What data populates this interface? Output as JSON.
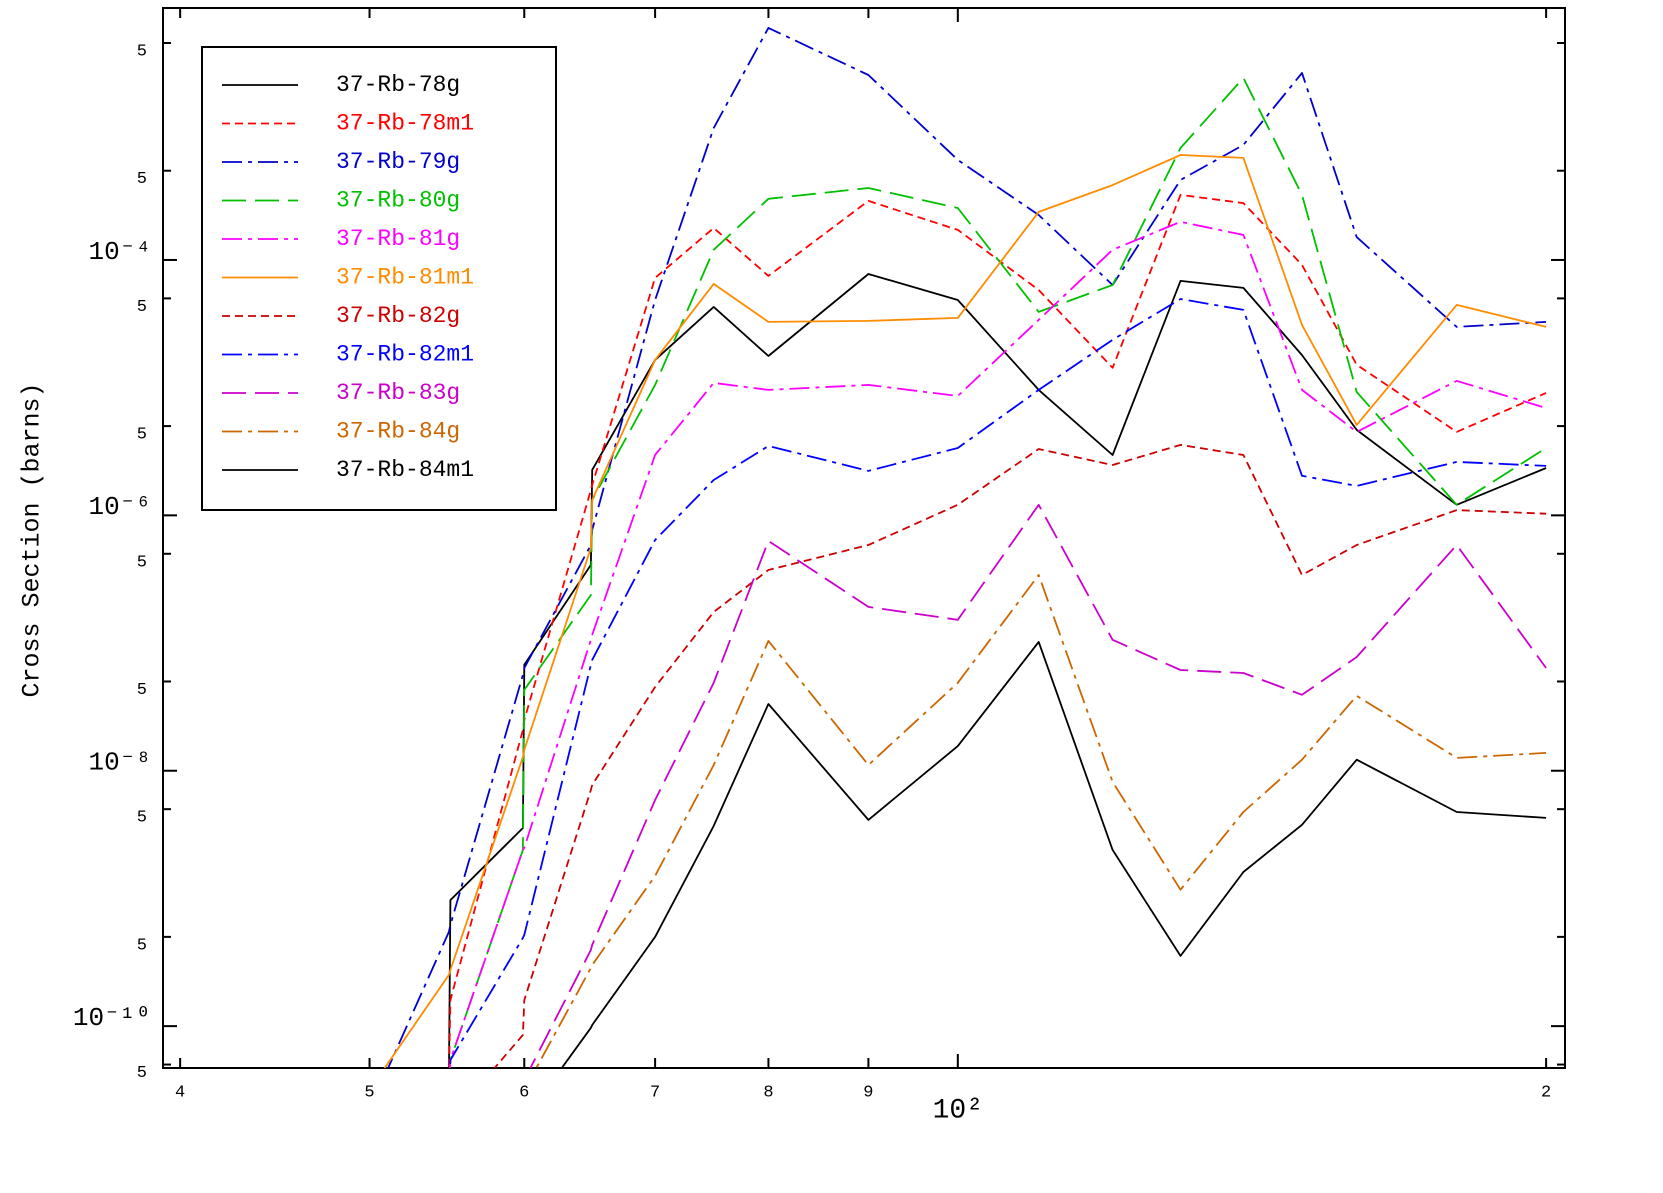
{
  "chart_data": {
    "type": "line",
    "ylabel": "Cross Section (barns)",
    "xscale": "log",
    "yscale": "log",
    "legend": "upper left",
    "xlim": [
      39.2,
      204.5
    ],
    "ylim": [
      4.7e-11,
      0.0094
    ],
    "xticks": [
      {
        "value": 40,
        "label": "4"
      },
      {
        "value": 50,
        "label": "5"
      },
      {
        "value": 60,
        "label": "6"
      },
      {
        "value": 70,
        "label": "7"
      },
      {
        "value": 80,
        "label": "8"
      },
      {
        "value": 90,
        "label": "9"
      },
      {
        "value": 100,
        "label": "10²"
      },
      {
        "value": 200,
        "label": "2"
      }
    ],
    "yticks": [
      {
        "value": 0.005,
        "label": "5"
      },
      {
        "value": 0.0005,
        "label": "5"
      },
      {
        "value": 0.0001,
        "label": "10⁻⁴"
      },
      {
        "value": 5e-05,
        "label": "5"
      },
      {
        "value": 5e-06,
        "label": "5"
      },
      {
        "value": 1e-06,
        "label": "10⁻⁶"
      },
      {
        "value": 5e-07,
        "label": "5"
      },
      {
        "value": 5e-08,
        "label": "5"
      },
      {
        "value": 1e-08,
        "label": "10⁻⁸"
      },
      {
        "value": 5e-09,
        "label": "5"
      },
      {
        "value": 5e-10,
        "label": "5"
      },
      {
        "value": 1e-10,
        "label": "10⁻¹⁰"
      },
      {
        "value": 5e-11,
        "label": "5"
      }
    ],
    "x": [
      50,
      54.9,
      55,
      59.9,
      60,
      64.9,
      65,
      70,
      75,
      80,
      90,
      100,
      110,
      120,
      130,
      140,
      150,
      160,
      180,
      200
    ],
    "series": [
      {
        "name": "37-Rb-78g",
        "color": "#000000",
        "dash": "solid",
        "values": [
          null,
          3.79e-11,
          9.7e-10,
          3.56e-09,
          6.75e-08,
          4.09e-07,
          2.27e-06,
          1.65e-05,
          4.29e-05,
          1.77e-05,
          7.76e-05,
          4.86e-05,
          9.6e-06,
          2.97e-06,
          6.85e-05,
          6.04e-05,
          1.8e-05,
          4.67e-06,
          1.21e-06,
          2.35e-06
        ]
      },
      {
        "name": "37-Rb-78m1",
        "color": "#ff0000",
        "dash": "dashed",
        "values": [
          null,
          3.79e-11,
          1.6e-10,
          2.09e-08,
          2.5e-08,
          1.58e-06,
          1.73e-06,
          7.23e-05,
          0.000178,
          7.5e-05,
          0.00029,
          0.000172,
          5.82e-05,
          1.43e-05,
          0.000323,
          0.000279,
          9.14e-05,
          1.51e-05,
          4.5e-06,
          9.1e-06
        ]
      },
      {
        "name": "37-Rb-79g",
        "color": "#0000cc",
        "dash": "dashdot",
        "values": [
          2.21e-11,
          5.47e-10,
          6.21e-10,
          5.62e-08,
          6.38e-08,
          5.86e-07,
          7.69e-07,
          4.86e-05,
          0.00108,
          0.00656,
          0.00281,
          0.000607,
          0.000225,
          6.37e-05,
          0.000423,
          0.000796,
          0.00291,
          0.000151,
          2.99e-05,
          3.27e-05
        ]
      },
      {
        "name": "37-Rb-80g",
        "color": "#00c000",
        "dash": "longdash",
        "values": [
          null,
          3.79e-11,
          5.43e-11,
          2.4e-09,
          4.3e-08,
          2.38e-07,
          1.32e-06,
          1.05e-05,
          0.00012,
          0.000301,
          0.000366,
          0.000255,
          3.92e-05,
          6.37e-05,
          0.000753,
          0.00266,
          0.000323,
          9.25e-06,
          1.21e-06,
          3.37e-06
        ]
      },
      {
        "name": "37-Rb-81g",
        "color": "#ff00ff",
        "dash": "dashdot",
        "values": [
          null,
          3.79e-11,
          5.43e-11,
          2.4e-09,
          2.49e-09,
          1.06e-07,
          1.16e-07,
          2.97e-06,
          1.09e-05,
          9.6e-06,
          1.05e-05,
          8.61e-06,
          3.39e-05,
          0.00012,
          0.000199,
          0.000157,
          9.6e-06,
          4.5e-06,
          1.13e-05,
          6.93e-06
        ]
      },
      {
        "name": "37-Rb-81m1",
        "color": "#ff8c00",
        "dash": "solid",
        "values": [
          3.16e-11,
          2.52e-10,
          2.75e-10,
          1.28e-08,
          1.46e-08,
          5.56e-07,
          1.32e-06,
          1.65e-05,
          6.49e-05,
          3.27e-05,
          3.33e-05,
          3.52e-05,
          0.000238,
          0.000386,
          0.000664,
          0.00063,
          3.1e-05,
          5.11e-06,
          4.45e-05,
          2.99e-05
        ]
      },
      {
        "name": "37-Rb-82g",
        "color": "#cc0000",
        "dash": "dashed",
        "values": [
          null,
          null,
          1.85e-11,
          8.53e-11,
          1.6e-10,
          7.08e-09,
          7.74e-09,
          4.53e-08,
          1.75e-07,
          3.73e-07,
          5.86e-07,
          1.21e-06,
          3.31e-06,
          2.48e-06,
          3.56e-06,
          2.97e-06,
          3.41e-07,
          5.86e-07,
          1.1e-06,
          1.03e-06
        ]
      },
      {
        "name": "37-Rb-82m1",
        "color": "#0000ff",
        "dash": "dashdot",
        "values": [
          null,
          2.64e-11,
          5.43e-11,
          4.91e-10,
          5.18e-10,
          6.75e-08,
          7.38e-08,
          6.41e-07,
          1.89e-06,
          3.49e-06,
          2.23e-06,
          3.37e-06,
          9.6e-06,
          2.37e-05,
          4.95e-05,
          4.06e-05,
          2.04e-06,
          1.7e-06,
          2.62e-06,
          2.44e-06
        ]
      },
      {
        "name": "37-Rb-83g",
        "color": "#cc00cc",
        "dash": "longdash",
        "values": [
          null,
          null,
          null,
          null,
          3.79e-11,
          3.95e-10,
          4.33e-10,
          5.9e-09,
          4.88e-08,
          6.31e-07,
          1.92e-07,
          1.52e-07,
          1.21e-06,
          1.06e-07,
          6.15e-08,
          5.83e-08,
          3.93e-08,
          7.78e-08,
          5.86e-07,
          6.38e-08
        ]
      },
      {
        "name": "37-Rb-84g",
        "color": "#cc6600",
        "dash": "dashdot",
        "values": [
          null,
          null,
          null,
          null,
          3.16e-11,
          2.86e-10,
          3.01e-10,
          1.5e-09,
          1.11e-08,
          1.04e-07,
          1.11e-08,
          4.88e-08,
          3.41e-07,
          8.17e-09,
          1.17e-09,
          4.75e-09,
          1.22e-08,
          3.86e-08,
          1.26e-08,
          1.38e-08
        ]
      },
      {
        "name": "37-Rb-84m1",
        "color": "#000000",
        "dash": "solid",
        "values": [
          null,
          null,
          null,
          null,
          1.85e-11,
          9.7e-11,
          1.02e-10,
          5e-10,
          3.7e-09,
          3.33e-08,
          4.12e-09,
          1.56e-08,
          1.02e-07,
          2.4e-09,
          3.55e-10,
          1.61e-09,
          3.77e-09,
          1.22e-08,
          4.75e-09,
          4.27e-09
        ]
      }
    ]
  }
}
